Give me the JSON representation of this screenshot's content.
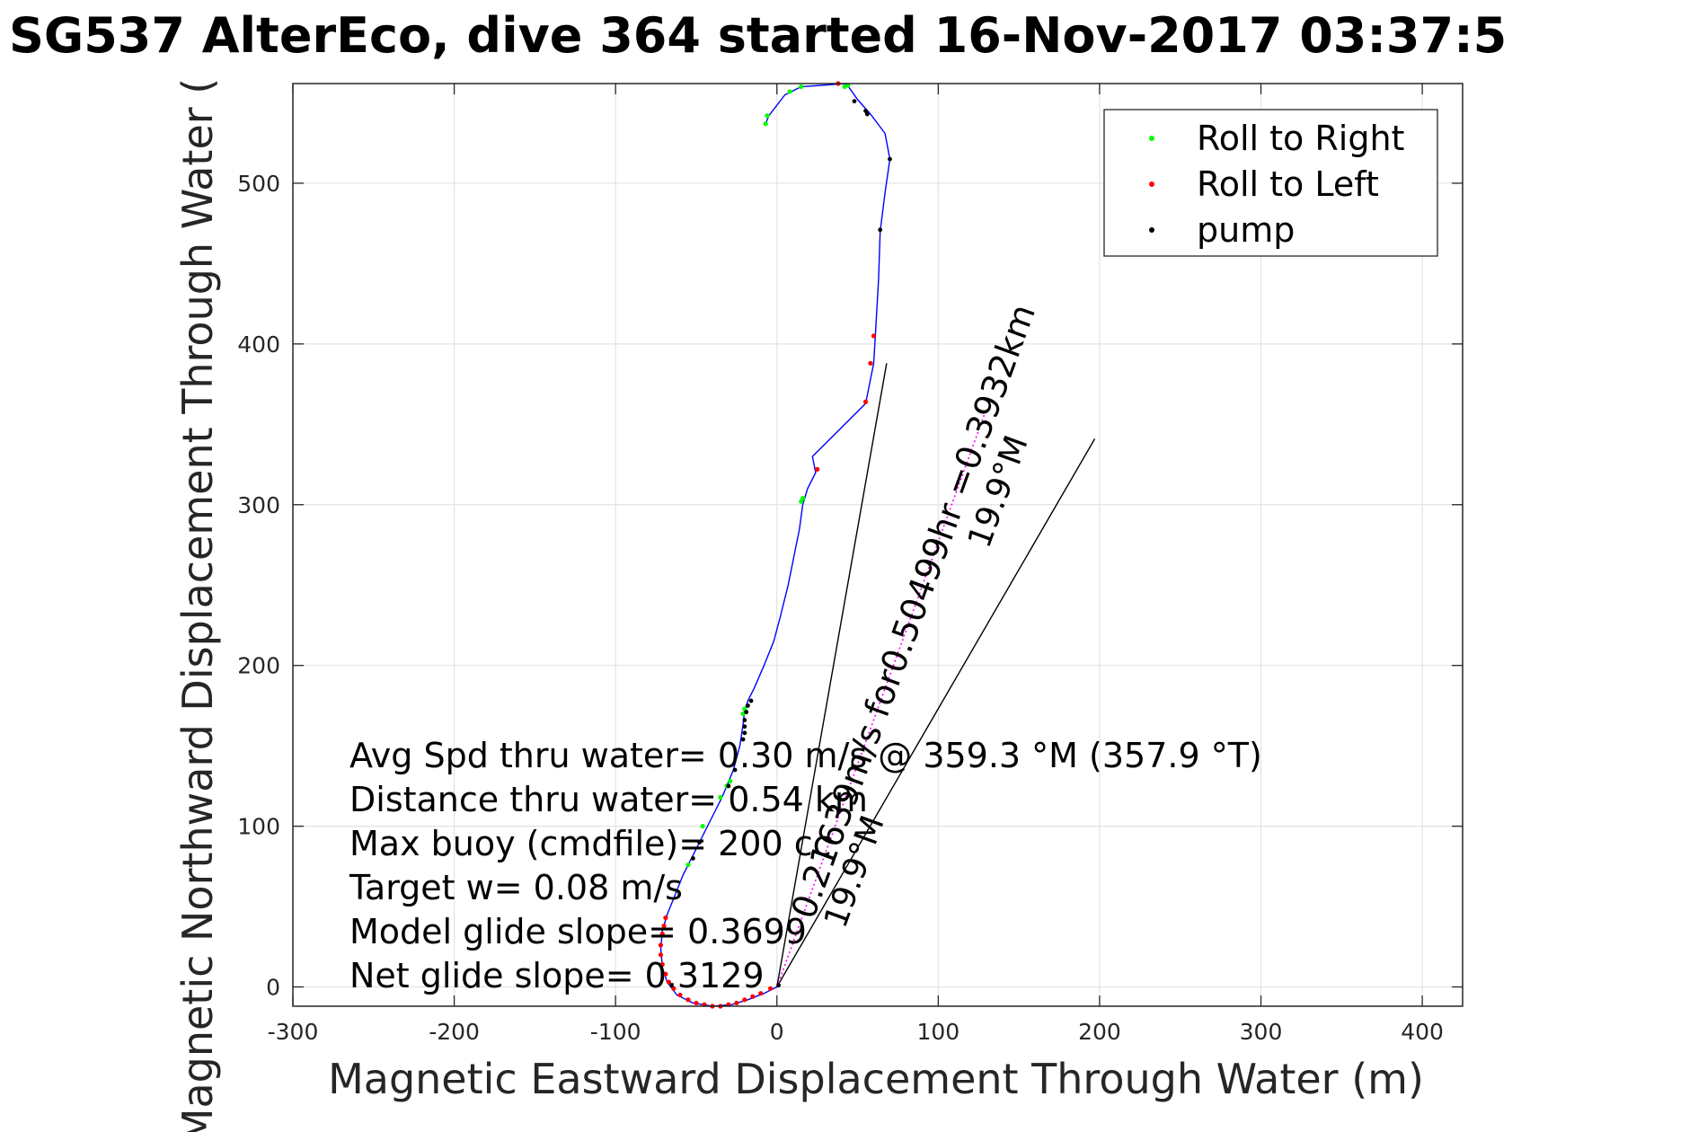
{
  "chart_data": {
    "type": "line",
    "title": "SG537 AlterEco, dive 364 started 16-Nov-2017 03:37:5",
    "xlabel": "Magnetic Eastward Displacement Through Water (m)",
    "ylabel": "Magnetic Northward Displacement Through Water (",
    "xlim": [
      -300,
      425
    ],
    "ylim": [
      -12,
      562
    ],
    "xticks": [
      -300,
      -200,
      -100,
      0,
      100,
      200,
      300,
      400
    ],
    "yticks": [
      0,
      100,
      200,
      300,
      400,
      500
    ],
    "grid": true,
    "legend": {
      "placement": "top-right",
      "entries": [
        {
          "label": "Roll to Right",
          "color": "#00ff00",
          "marker": "dot"
        },
        {
          "label": "Roll to Left",
          "color": "#ff0000",
          "marker": "dot"
        },
        {
          "label": "pump",
          "color": "#000000",
          "marker": "dot"
        }
      ]
    },
    "track": {
      "name": "track",
      "color": "#0000ff",
      "points": [
        [
          0,
          0
        ],
        [
          -8,
          -4
        ],
        [
          -18,
          -8
        ],
        [
          -28,
          -11
        ],
        [
          -40,
          -12
        ],
        [
          -52,
          -10
        ],
        [
          -62,
          -5
        ],
        [
          -68,
          3
        ],
        [
          -71,
          12
        ],
        [
          -72,
          24
        ],
        [
          -71,
          35
        ],
        [
          -68,
          45
        ],
        [
          -64,
          55
        ],
        [
          -58,
          70
        ],
        [
          -50,
          86
        ],
        [
          -42,
          102
        ],
        [
          -34,
          118
        ],
        [
          -27,
          135
        ],
        [
          -23,
          150
        ],
        [
          -21,
          163
        ],
        [
          -20,
          172
        ],
        [
          -18,
          178
        ],
        [
          -14,
          186
        ],
        [
          -8,
          200
        ],
        [
          -2,
          215
        ],
        [
          2,
          230
        ],
        [
          7,
          250
        ],
        [
          11,
          270
        ],
        [
          14,
          285
        ],
        [
          16,
          300
        ],
        [
          19,
          310
        ],
        [
          24,
          320
        ],
        [
          22,
          330
        ],
        [
          55,
          363
        ],
        [
          60,
          388
        ],
        [
          61,
          405
        ],
        [
          63,
          440
        ],
        [
          64,
          470
        ],
        [
          67,
          494
        ],
        [
          70,
          515
        ],
        [
          67,
          531
        ],
        [
          58,
          543
        ],
        [
          50,
          552
        ],
        [
          43,
          562
        ],
        [
          15,
          560
        ],
        [
          5,
          555
        ],
        [
          -5,
          542
        ],
        [
          -7,
          537
        ]
      ]
    },
    "roll_right": {
      "color": "#00ff00",
      "points": [
        [
          -7,
          537
        ],
        [
          -6,
          542
        ],
        [
          8,
          557
        ],
        [
          15,
          560
        ],
        [
          -55,
          76
        ],
        [
          -46,
          100
        ],
        [
          -35,
          118
        ],
        [
          -31,
          125
        ],
        [
          -29,
          128
        ],
        [
          -21,
          170
        ],
        [
          -20,
          173
        ],
        [
          15,
          302
        ],
        [
          16,
          304
        ],
        [
          42,
          560
        ],
        [
          44,
          561
        ]
      ]
    },
    "roll_left": {
      "color": "#ff0000",
      "points": [
        [
          -4,
          -1
        ],
        [
          -10,
          -4
        ],
        [
          -15,
          -6
        ],
        [
          -20,
          -8
        ],
        [
          -25,
          -10
        ],
        [
          -30,
          -11
        ],
        [
          -35,
          -12
        ],
        [
          -40,
          -12
        ],
        [
          -45,
          -11
        ],
        [
          -50,
          -10
        ],
        [
          -55,
          -8
        ],
        [
          -60,
          -5
        ],
        [
          -64,
          -1
        ],
        [
          -67,
          3
        ],
        [
          -69,
          8
        ],
        [
          -71,
          14
        ],
        [
          -72,
          20
        ],
        [
          -72,
          26
        ],
        [
          -71,
          33
        ],
        [
          -70,
          38
        ],
        [
          -69,
          43
        ],
        [
          25,
          322
        ],
        [
          55,
          364
        ],
        [
          58,
          388
        ],
        [
          60,
          405
        ],
        [
          38,
          562
        ]
      ]
    },
    "pump": {
      "color": "#000000",
      "points": [
        [
          -21,
          154
        ],
        [
          -20,
          158
        ],
        [
          -20,
          162
        ],
        [
          -20,
          166
        ],
        [
          -19,
          171
        ],
        [
          -18,
          175
        ],
        [
          -16,
          178
        ],
        [
          -52,
          80
        ],
        [
          -48,
          90
        ],
        [
          -30,
          125
        ],
        [
          -26,
          135
        ],
        [
          48,
          551
        ],
        [
          55,
          545
        ],
        [
          56,
          543
        ],
        [
          70,
          515
        ],
        [
          64,
          471
        ],
        [
          1,
          1
        ]
      ]
    },
    "current_vector": {
      "color": "#ff00ff",
      "from": [
        0,
        0
      ],
      "to": [
        130,
        360
      ]
    },
    "direction_lines": [
      {
        "from": [
          0,
          0
        ],
        "to": [
          68,
          388
        ],
        "color": "#000000"
      },
      {
        "from": [
          0,
          0
        ],
        "to": [
          197,
          341
        ],
        "color": "#000000"
      }
    ],
    "annotations": [
      {
        "id": "avg_speed",
        "text": "Avg Spd thru water=  0.30 m/s @ 359.3 °M (357.9 °T)"
      },
      {
        "id": "distance",
        "text": "Distance thru water=  0.54 km"
      },
      {
        "id": "max_buoy",
        "text": "Max buoy (cmdfile)= 200 cc"
      },
      {
        "id": "target_w",
        "text": "Target w= 0.08 m/s"
      },
      {
        "id": "model_slope",
        "text": "Model glide slope= 0.3699"
      },
      {
        "id": "net_slope",
        "text": "Net glide slope= 0.3129"
      },
      {
        "id": "current_label",
        "text": "0.21639m/s for0.50499hr =0.3932km"
      },
      {
        "id": "current_deg_a",
        "text": "19.9°M"
      },
      {
        "id": "current_deg_b",
        "text": "19.9°M"
      }
    ]
  }
}
